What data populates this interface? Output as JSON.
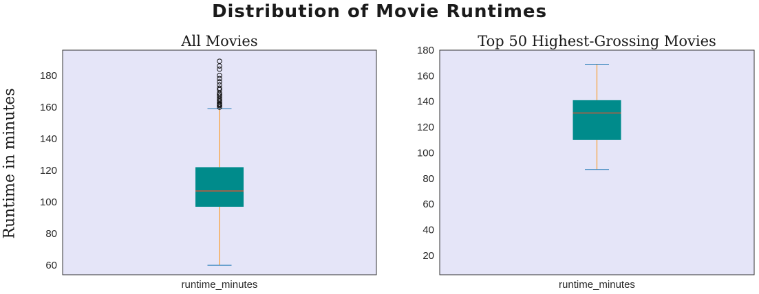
{
  "figure": {
    "suptitle": "Distribution of Movie Runtimes",
    "ylabel": "Runtime in minutes"
  },
  "chart_data": [
    {
      "type": "box",
      "title": "All Movies",
      "xlabel": "",
      "ylabel": "Runtime in minutes",
      "categories": [
        "runtime_minutes"
      ],
      "ylim": [
        54,
        196
      ],
      "yticks": [
        60,
        80,
        100,
        120,
        140,
        160,
        180
      ],
      "boxes": [
        {
          "whisker_low": 60,
          "q1": 97,
          "median": 107,
          "q3": 122,
          "whisker_high": 159,
          "outliers": [
            160,
            161,
            161.5,
            162,
            163,
            164,
            165,
            166,
            167,
            168,
            169,
            171,
            172,
            174,
            176,
            178,
            180,
            184,
            186,
            189
          ]
        }
      ],
      "colors": {
        "box": "#008b8b",
        "median": "#c85a3a",
        "whisker": "#ff8c00",
        "cap": "#1f77b4",
        "background": "#e5e5f8"
      },
      "grid": false
    },
    {
      "type": "box",
      "title": "Top 50 Highest-Grossing Movies",
      "xlabel": "",
      "ylabel": "",
      "categories": [
        "runtime_minutes"
      ],
      "ylim": [
        5,
        180
      ],
      "yticks": [
        20,
        40,
        60,
        80,
        100,
        120,
        140,
        160,
        180
      ],
      "boxes": [
        {
          "whisker_low": 87,
          "q1": 110,
          "median": 131,
          "q3": 141,
          "whisker_high": 169,
          "outliers": []
        }
      ],
      "colors": {
        "box": "#008b8b",
        "median": "#c85a3a",
        "whisker": "#ff8c00",
        "cap": "#1f77b4",
        "background": "#e5e5f8"
      },
      "grid": false
    }
  ]
}
